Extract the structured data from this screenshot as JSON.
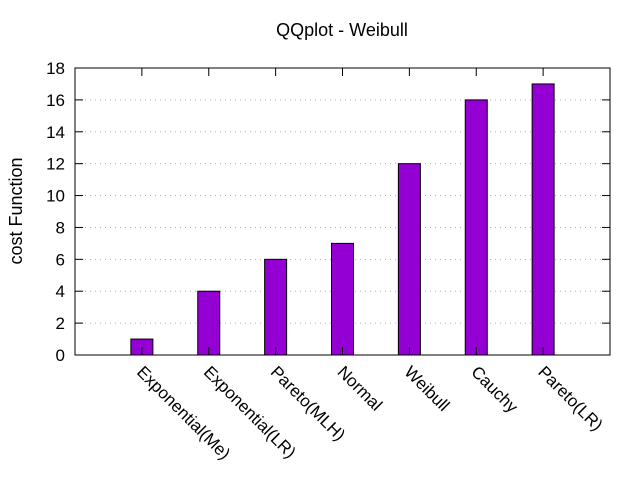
{
  "chart_data": {
    "type": "bar",
    "title": "QQplot - Weibull",
    "xlabel": "",
    "ylabel": "cost Function",
    "categories": [
      "Exponential(Me)",
      "Exponential(LR)",
      "Pareto(MLH)",
      "Normal",
      "Weibull",
      "Cauchy",
      "Pareto(LR)"
    ],
    "values": [
      1,
      4,
      6,
      7,
      12,
      16,
      17
    ],
    "ylim": [
      0,
      18
    ],
    "yticks": [
      0,
      2,
      4,
      6,
      8,
      10,
      12,
      14,
      16,
      18
    ],
    "grid": "horizontal-dotted",
    "legend": "none",
    "bar_color": "#9400d3",
    "bar_edge_color": "#000000"
  }
}
